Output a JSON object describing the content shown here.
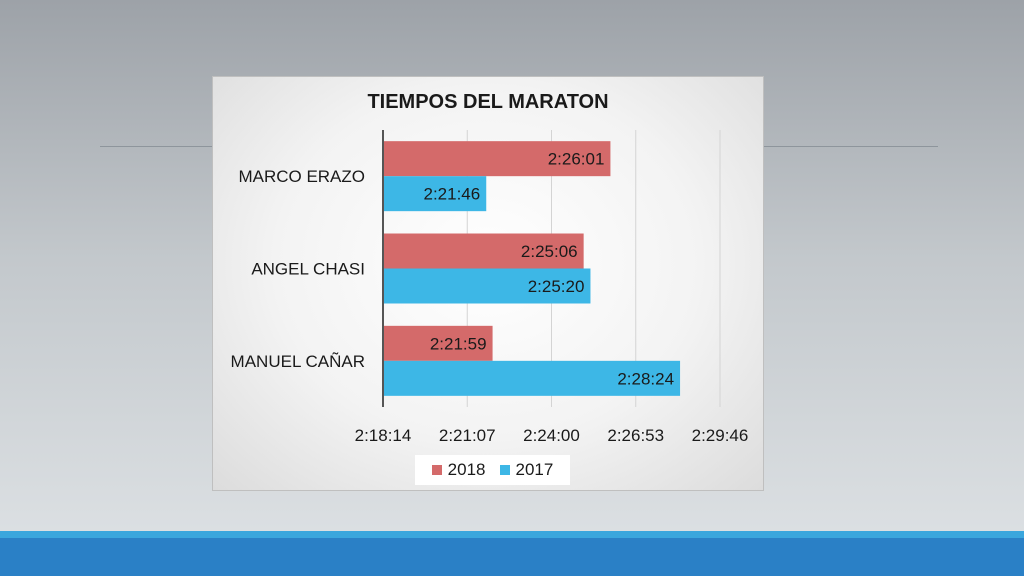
{
  "chart_data": {
    "type": "bar",
    "orientation": "horizontal",
    "title": "TIEMPOS DEL MARATON",
    "categories": [
      "MARCO ERAZO",
      "ANGEL CHASI",
      "MANUEL CAÑAR"
    ],
    "x_ticks": [
      "2:18:14",
      "2:21:07",
      "2:24:00",
      "2:26:53",
      "2:29:46"
    ],
    "xlim": [
      "2:18:14",
      "2:29:46"
    ],
    "grid": true,
    "legend_position": "bottom",
    "series": [
      {
        "name": "2018",
        "color": "#d46a6a",
        "values": [
          "2:26:01",
          "2:25:06",
          "2:21:59"
        ]
      },
      {
        "name": "2017",
        "color": "#3db7e6",
        "values": [
          "2:21:46",
          "2:25:20",
          "2:28:24"
        ]
      }
    ]
  }
}
